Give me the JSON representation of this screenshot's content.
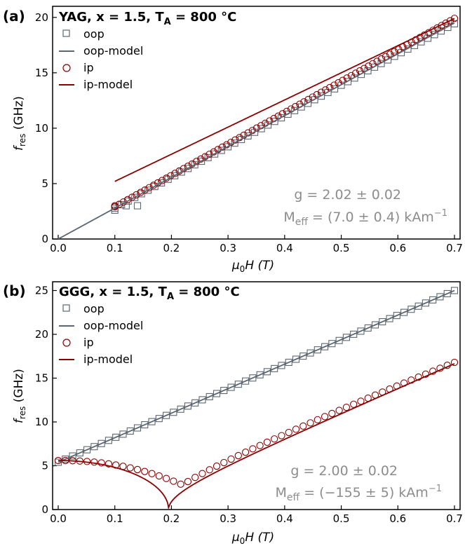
{
  "chart_data": [
    {
      "type": "scatter",
      "panel_label": "(a)",
      "title": {
        "prefix": "YAG, x = 1.5, T",
        "sub": "A",
        "suffix": " = 800 °C"
      },
      "xlabel": {
        "main": "μ",
        "sub": "0",
        "rest": "H (T)"
      },
      "ylabel": {
        "main": "f",
        "sub": "res",
        "rest": " (GHz)"
      },
      "xlim": [
        0.0,
        0.7
      ],
      "ylim": [
        0,
        21
      ],
      "xticks": [
        0.0,
        0.1,
        0.2,
        0.3,
        0.4,
        0.5,
        0.6,
        0.7
      ],
      "xtick_labels": [
        "0.0",
        "0.1",
        "0.2",
        "0.3",
        "0.4",
        "0.5",
        "0.6",
        "0.7"
      ],
      "yticks": [
        0,
        5,
        10,
        15,
        20
      ],
      "ytick_labels": [
        "0",
        "5",
        "10",
        "15",
        "20"
      ],
      "legend": [
        "oop",
        "oop-model",
        "ip",
        "ip-model"
      ],
      "legend_position": "top-left",
      "annotation": {
        "g_line": "g = 2.02 ± 0.02",
        "m_main": "M",
        "m_sub": "eff",
        "m_rest": " = (7.0 ± 0.4) kAm",
        "m_sup": "−1"
      },
      "colors": {
        "oop": "#5c6670",
        "ip": "#8b0000"
      },
      "model": {
        "oop": {
          "slope": 27.85,
          "intercept": 0.0,
          "x_range": [
            0.0,
            0.7
          ]
        },
        "ip": {
          "slope": 24.5,
          "intercept": 2.75,
          "x_range": [
            0.1,
            0.7
          ]
        }
      },
      "series": [
        {
          "name": "oop",
          "marker": "square",
          "x_range": [
            0.1,
            0.7
          ],
          "n": 52,
          "slope": 27.75,
          "intercept": 0.0,
          "first_points": [
            [
              0.1,
              2.6
            ],
            [
              0.12,
              3.0
            ],
            [
              0.14,
              3.0
            ]
          ]
        },
        {
          "name": "ip",
          "marker": "circle",
          "x_range": [
            0.1,
            0.7
          ],
          "n": 80,
          "slope": 28.33,
          "intercept": 0.08,
          "first_points": [
            [
              0.1,
              3.0
            ]
          ]
        }
      ]
    },
    {
      "type": "scatter",
      "panel_label": "(b)",
      "title": {
        "prefix": "GGG, x = 1.5, T",
        "sub": "A",
        "suffix": " = 800 °C"
      },
      "xlabel": {
        "main": "μ",
        "sub": "0",
        "rest": "H (T)"
      },
      "ylabel": {
        "main": "f",
        "sub": "res",
        "rest": " (GHz)"
      },
      "xlim": [
        0.0,
        0.7
      ],
      "ylim": [
        0,
        26
      ],
      "xticks": [
        0.0,
        0.1,
        0.2,
        0.3,
        0.4,
        0.5,
        0.6,
        0.7
      ],
      "xtick_labels": [
        "0.0",
        "0.1",
        "0.2",
        "0.3",
        "0.4",
        "0.5",
        "0.6",
        "0.7"
      ],
      "yticks": [
        0,
        5,
        10,
        15,
        20,
        25
      ],
      "ytick_labels": [
        "0",
        "5",
        "10",
        "15",
        "20",
        "25"
      ],
      "legend": [
        "oop",
        "oop-model",
        "ip",
        "ip-model"
      ],
      "legend_position": "top-left",
      "annotation": {
        "g_line": "g = 2.00 ± 0.02",
        "m_main": "M",
        "m_sub": "eff",
        "m_rest": " = (−155 ± 5) kAm",
        "m_sup": "−1"
      },
      "colors": {
        "oop": "#5c6670",
        "ip": "#8b0000"
      },
      "model": {
        "oop": {
          "slope": 28.0,
          "intercept": 5.4,
          "x_range": [
            0.0,
            0.7
          ]
        },
        "ip": {
          "kink_x": 0.195,
          "left_at_zero": 5.6,
          "right_slope": 28.0,
          "x_range": [
            0.0,
            0.7
          ]
        }
      },
      "series": [
        {
          "name": "oop",
          "marker": "square",
          "x_range": [
            0.0,
            0.7
          ],
          "n": 56,
          "slope": 28.0,
          "intercept": 5.4
        },
        {
          "name": "ip",
          "marker": "circle",
          "x_range": [
            0.0,
            0.7
          ],
          "n": 56,
          "kink_x": 0.22,
          "left_at_zero": 5.6,
          "min_value": 2.8,
          "end_value": 16.8
        }
      ]
    }
  ]
}
